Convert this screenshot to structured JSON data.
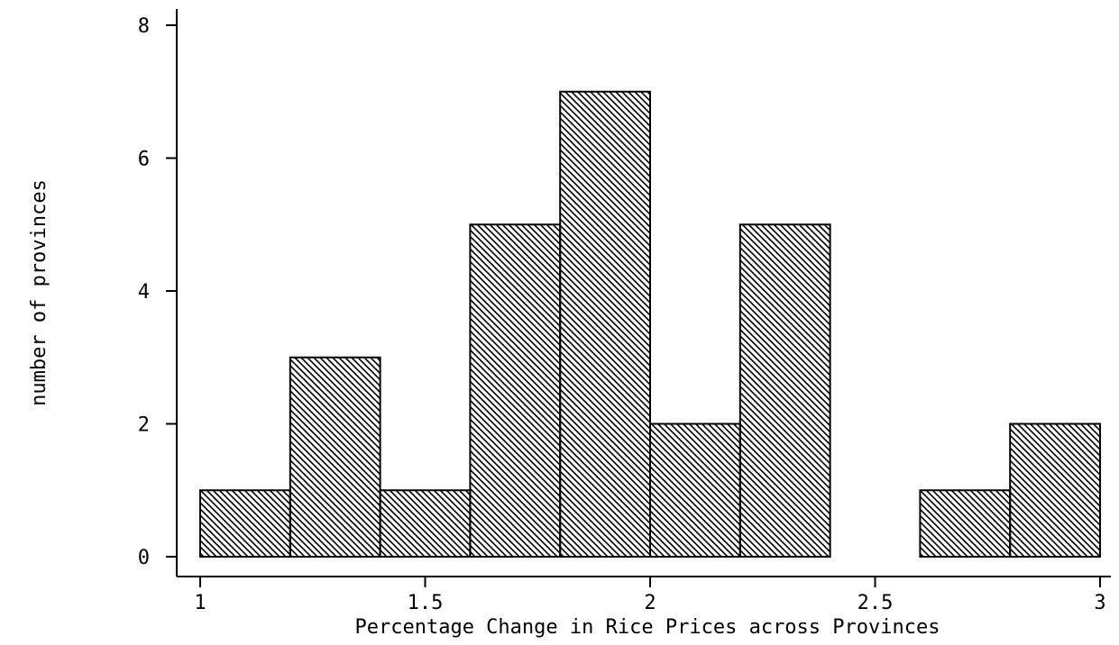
{
  "chart_data": {
    "type": "bar",
    "xlabel": "Percentage Change in Rice Prices across Provinces",
    "ylabel": "number of provinces",
    "xlim": [
      1,
      3
    ],
    "ylim": [
      0,
      8
    ],
    "x_ticks": [
      1,
      1.5,
      2,
      2.5,
      3
    ],
    "x_tick_labels": [
      "1",
      "1.5",
      "2",
      "2.5",
      "3"
    ],
    "y_ticks": [
      0,
      2,
      4,
      6,
      8
    ],
    "y_tick_labels": [
      "0",
      "2",
      "4",
      "6",
      "8"
    ],
    "bin_edges": [
      1.0,
      1.2,
      1.4,
      1.6,
      1.8,
      2.0,
      2.2,
      2.4,
      2.6,
      2.8,
      3.0
    ],
    "values": [
      1,
      3,
      1,
      5,
      7,
      2,
      5,
      0,
      1,
      2
    ],
    "bar_fill": "diagonal-hatch",
    "bar_color": "#000000",
    "grid": false,
    "legend": "none"
  }
}
